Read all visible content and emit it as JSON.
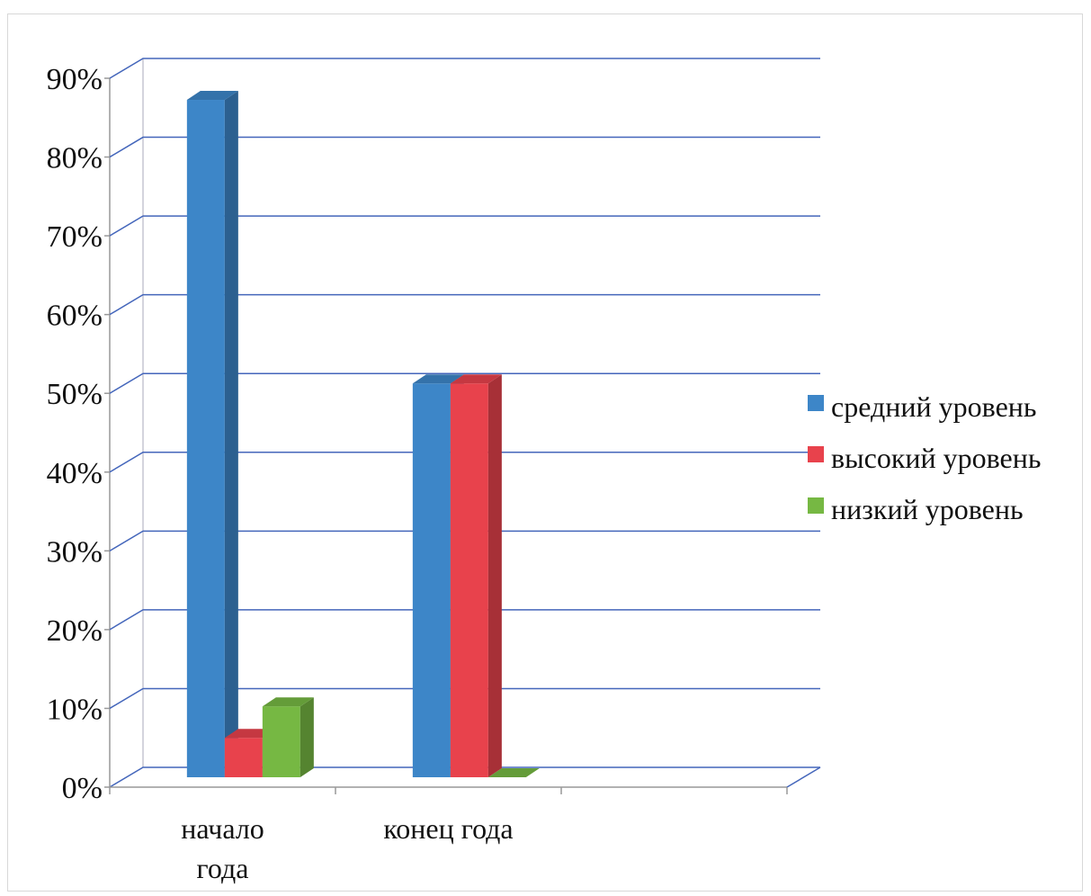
{
  "chart_data": {
    "type": "bar",
    "style": "3d-clustered-column",
    "categories": [
      [
        "начало",
        "года"
      ],
      [
        "конец года"
      ],
      [
        ""
      ]
    ],
    "series": [
      {
        "name": "средний уровень",
        "color": "#3d86c8",
        "values": [
          86,
          50,
          null
        ]
      },
      {
        "name": "высокий уровень",
        "color": "#e8424c",
        "values": [
          5,
          50,
          null
        ]
      },
      {
        "name": "низкий уровень",
        "color": "#76b843",
        "values": [
          9,
          0,
          null
        ]
      }
    ],
    "ylim": [
      0,
      90
    ],
    "yticks": [
      "0%",
      "10%",
      "20%",
      "30%",
      "40%",
      "50%",
      "60%",
      "70%",
      "80%",
      "90%"
    ],
    "grid": true,
    "grid_color": "#4466bb",
    "legend_position": "right"
  }
}
